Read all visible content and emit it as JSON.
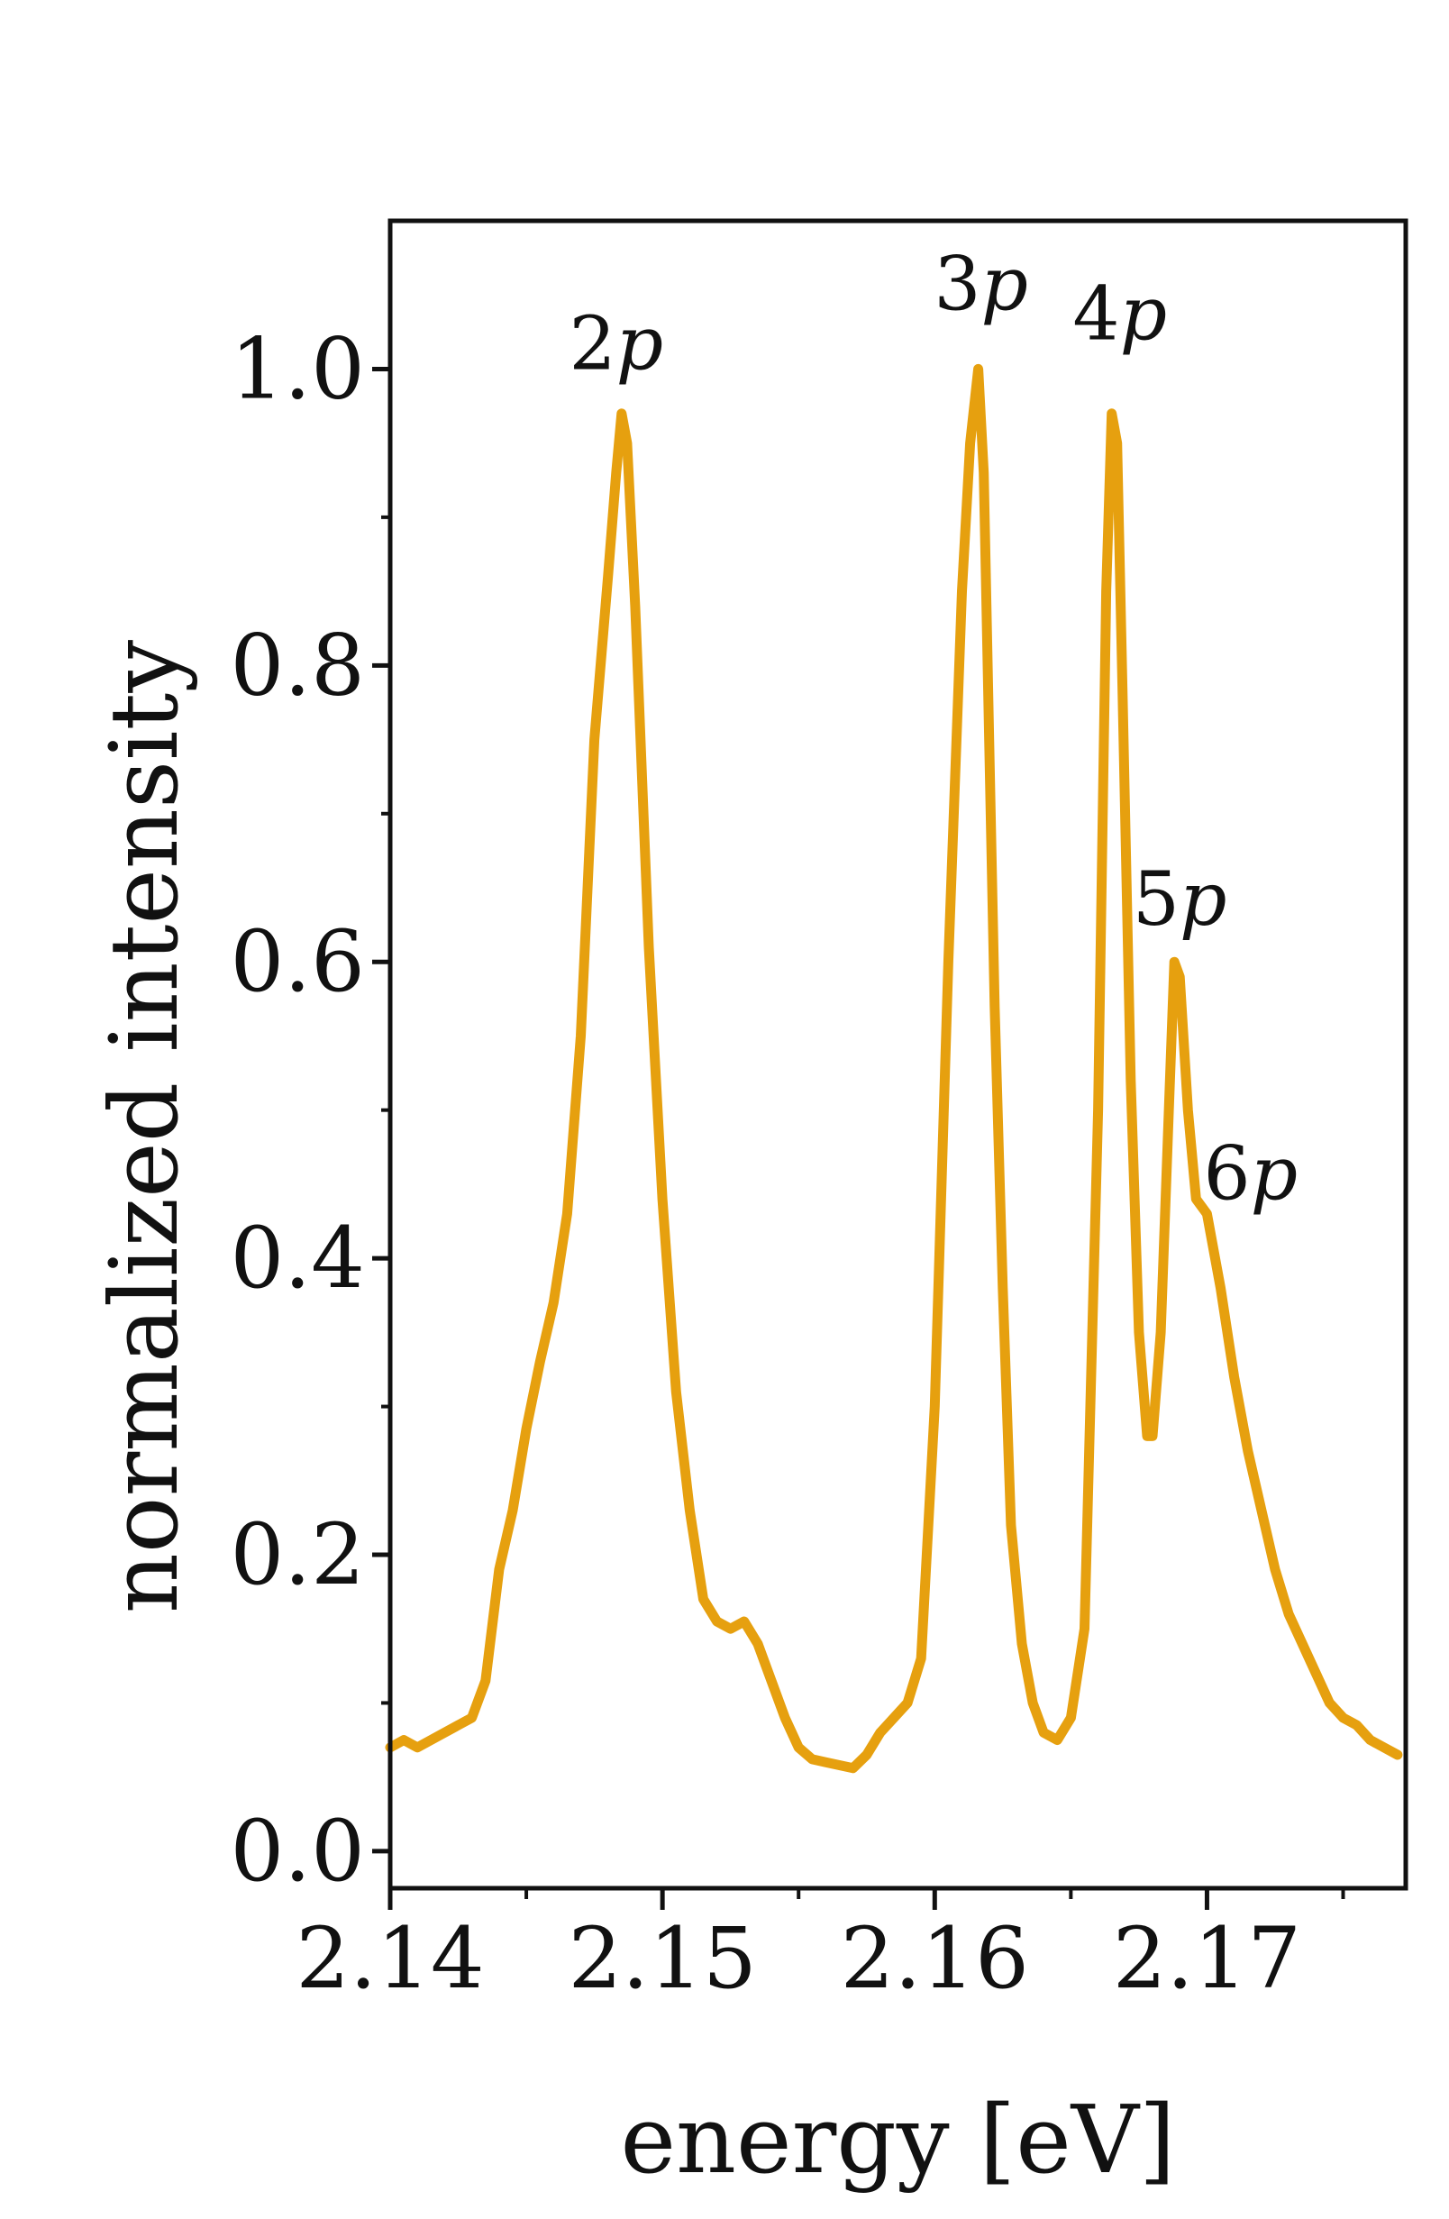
{
  "chart_data": {
    "type": "line",
    "xlabel": "energy [eV]",
    "ylabel": "normalized intensity",
    "xlim": [
      2.14,
      2.1773
    ],
    "ylim": [
      -0.025,
      1.1
    ],
    "x_ticks": [
      "2.14",
      "2.15",
      "2.16",
      "2.17"
    ],
    "x_tick_values": [
      2.14,
      2.15,
      2.16,
      2.17
    ],
    "x_minor_ticks": [
      2.145,
      2.155,
      2.165,
      2.175
    ],
    "y_ticks": [
      "0.0",
      "0.2",
      "0.4",
      "0.6",
      "0.8",
      "1.0"
    ],
    "y_tick_values": [
      0.0,
      0.2,
      0.4,
      0.6,
      0.8,
      1.0
    ],
    "y_minor_ticks": [
      0.1,
      0.3,
      0.5,
      0.7,
      0.9
    ],
    "grid": false,
    "line_color": "#e6a00f",
    "series": [
      {
        "x": [
          2.14,
          2.1405,
          2.141,
          2.1415,
          2.142,
          2.1425,
          2.143,
          2.1435,
          2.144,
          2.1445,
          2.145,
          2.1455,
          2.146,
          2.1465,
          2.147,
          2.1475,
          2.148,
          2.1483,
          2.1485,
          2.1487,
          2.149,
          2.1495,
          2.15,
          2.1505,
          2.151,
          2.1515,
          2.152,
          2.1525,
          2.153,
          2.1535,
          2.154,
          2.1545,
          2.155,
          2.1555,
          2.156,
          2.1565,
          2.157,
          2.1575,
          2.158,
          2.1585,
          2.159,
          2.1595,
          2.16,
          2.1605,
          2.161,
          2.1613,
          2.1616,
          2.1618,
          2.162,
          2.1622,
          2.1625,
          2.1628,
          2.1632,
          2.1636,
          2.164,
          2.1645,
          2.165,
          2.1655,
          2.166,
          2.1663,
          2.1665,
          2.1667,
          2.1669,
          2.1672,
          2.1675,
          2.1678,
          2.168,
          2.1683,
          2.1686,
          2.1688,
          2.169,
          2.1693,
          2.1696,
          2.17,
          2.1705,
          2.171,
          2.1715,
          2.172,
          2.1725,
          2.173,
          2.1735,
          2.174,
          2.1745,
          2.175,
          2.1755,
          2.176,
          2.1765,
          2.177
        ],
        "y": [
          0.07,
          0.075,
          0.07,
          0.075,
          0.08,
          0.085,
          0.09,
          0.115,
          0.19,
          0.23,
          0.285,
          0.33,
          0.37,
          0.43,
          0.55,
          0.75,
          0.86,
          0.93,
          0.97,
          0.95,
          0.84,
          0.61,
          0.44,
          0.31,
          0.23,
          0.17,
          0.155,
          0.15,
          0.155,
          0.14,
          0.115,
          0.09,
          0.07,
          0.062,
          0.06,
          0.058,
          0.056,
          0.065,
          0.08,
          0.09,
          0.1,
          0.13,
          0.3,
          0.6,
          0.85,
          0.95,
          1.0,
          0.93,
          0.75,
          0.57,
          0.38,
          0.22,
          0.14,
          0.1,
          0.08,
          0.075,
          0.09,
          0.15,
          0.5,
          0.85,
          0.97,
          0.95,
          0.78,
          0.52,
          0.35,
          0.28,
          0.28,
          0.35,
          0.5,
          0.6,
          0.59,
          0.5,
          0.44,
          0.43,
          0.38,
          0.32,
          0.27,
          0.23,
          0.19,
          0.16,
          0.14,
          0.12,
          0.1,
          0.09,
          0.085,
          0.075,
          0.07,
          0.065
        ]
      }
    ],
    "annotations": [
      {
        "num": "2",
        "sym": "p",
        "x": 2.1483,
        "y": 1.0
      },
      {
        "num": "3",
        "sym": "p",
        "x": 2.1617,
        "y": 1.04
      },
      {
        "num": "4",
        "sym": "p",
        "x": 2.1668,
        "y": 1.02
      },
      {
        "num": "5",
        "sym": "p",
        "x": 2.169,
        "y": 0.625
      },
      {
        "num": "6",
        "sym": "p",
        "x": 2.1716,
        "y": 0.44
      }
    ]
  }
}
